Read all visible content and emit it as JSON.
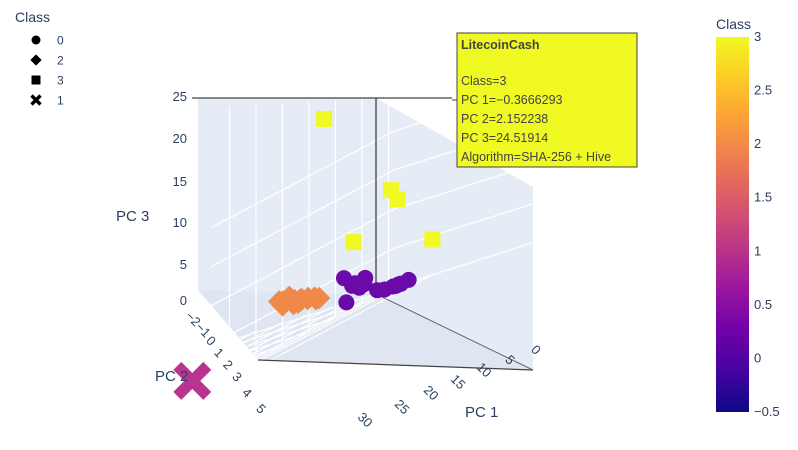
{
  "chart_data": {
    "type": "scatter",
    "dimensions": 3,
    "xlabel": "PC 1",
    "ylabel": "PC 2",
    "zlabel": "PC 3",
    "xlim": [
      -1.5,
      32
    ],
    "ylim": [
      -2.5,
      5.5
    ],
    "zlim": [
      -1,
      25.5
    ],
    "x_ticks": [
      "0",
      "5",
      "10",
      "15",
      "20",
      "25",
      "30"
    ],
    "y_ticks": [
      "−2",
      "−1",
      "0",
      "1",
      "2",
      "3",
      "4",
      "5"
    ],
    "z_ticks": [
      "0",
      "5",
      "10",
      "15",
      "20",
      "25"
    ],
    "grid": true,
    "legend": {
      "title": "Class",
      "placement": "top-left",
      "items": [
        {
          "label": "0",
          "symbol": "circle"
        },
        {
          "label": "2",
          "symbol": "diamond"
        },
        {
          "label": "3",
          "symbol": "square"
        },
        {
          "label": "1",
          "symbol": "x"
        }
      ]
    },
    "colorbar": {
      "title": "Class",
      "range": [
        -0.5,
        3
      ],
      "ticks": [
        "3",
        "2.5",
        "2",
        "1.5",
        "1",
        "0.5",
        "0",
        "−0.5"
      ],
      "colors": [
        "#0d0887",
        "#46039f",
        "#7201a8",
        "#9c179e",
        "#bd3786",
        "#d8576b",
        "#ed7953",
        "#fb9f3a",
        "#fdca26",
        "#f0f921"
      ]
    },
    "series": [
      {
        "class": 0,
        "symbol": "circle",
        "color": "#6a0aa8",
        "points": [
          {
            "x": 1.2,
            "y": 0.7,
            "z": 2.2
          },
          {
            "x": 1.8,
            "y": 0.9,
            "z": 3.6
          },
          {
            "x": 0.8,
            "y": 0.5,
            "z": 1.6
          },
          {
            "x": 0.3,
            "y": 0.4,
            "z": 1.8
          },
          {
            "x": -0.3,
            "y": 0.9,
            "z": 2.2
          },
          {
            "x": -0.8,
            "y": 0.6,
            "z": 2.4
          },
          {
            "x": 1.4,
            "y": -1.2,
            "z": 0.5
          },
          {
            "x": 1.0,
            "y": -0.9,
            "z": 0.4
          },
          {
            "x": 0.5,
            "y": -0.9,
            "z": 0.3
          },
          {
            "x": 0.0,
            "y": -1.0,
            "z": 0.3
          },
          {
            "x": -0.5,
            "y": -1.2,
            "z": 0.4
          },
          {
            "x": 1.2,
            "y": -0.3,
            "z": 0.6
          },
          {
            "x": -0.2,
            "y": -0.3,
            "z": 0.2
          },
          {
            "x": 0.4,
            "y": 1.1,
            "z": 0.2
          }
        ]
      },
      {
        "class": 2,
        "symbol": "diamond",
        "color": "#f0884a",
        "points": [
          {
            "x": 1.3,
            "y": 2.0,
            "z": 2.0
          },
          {
            "x": 1.4,
            "y": 2.1,
            "z": 2.0
          },
          {
            "x": 1.2,
            "y": 2.2,
            "z": 2.2
          },
          {
            "x": 1.5,
            "y": 2.4,
            "z": 2.5
          },
          {
            "x": 1.1,
            "y": 2.5,
            "z": 2.3
          },
          {
            "x": 1.3,
            "y": 2.7,
            "z": 2.6
          },
          {
            "x": 1.0,
            "y": 2.8,
            "z": 2.4
          },
          {
            "x": 1.2,
            "y": 3.0,
            "z": 2.7
          },
          {
            "x": 1.0,
            "y": 3.2,
            "z": 3.0
          },
          {
            "x": 0.8,
            "y": 3.3,
            "z": 3.3
          },
          {
            "x": 1.6,
            "y": 3.4,
            "z": 2.6
          },
          {
            "x": 1.3,
            "y": 3.6,
            "z": 3.2
          },
          {
            "x": 1.4,
            "y": 3.0,
            "z": 2.3
          },
          {
            "x": 1.1,
            "y": 3.5,
            "z": 3.0
          },
          {
            "x": 1.5,
            "y": 2.8,
            "z": 2.3
          },
          {
            "x": 0.2,
            "y": 3.0,
            "z": 2.4
          }
        ]
      },
      {
        "class": 3,
        "symbol": "square",
        "color": "#f0f921",
        "points": [
          {
            "x": -0.3666293,
            "y": 2.152238,
            "z": 24.51914
          },
          {
            "x": -1.7,
            "y": -0.5,
            "z": 11.0
          },
          {
            "x": -1.4,
            "y": -0.3,
            "z": 12.5
          },
          {
            "x": -0.5,
            "y": 1.0,
            "z": 7.5
          },
          {
            "x": -1.2,
            "y": -2.0,
            "z": 4.5
          }
        ]
      },
      {
        "class": 1,
        "symbol": "x",
        "color": "#b8358f",
        "points": [
          {
            "x": 29.0,
            "y": 1.2,
            "z": 0.5
          }
        ]
      }
    ],
    "tooltip": {
      "title": "LitecoinCash",
      "lines": [
        "Class=3",
        "PC 1=−0.3666293",
        "PC 2=2.152238",
        "PC 3=24.51914",
        "Algorithm=SHA-256 + Hive"
      ],
      "background": "#f0f921"
    }
  }
}
